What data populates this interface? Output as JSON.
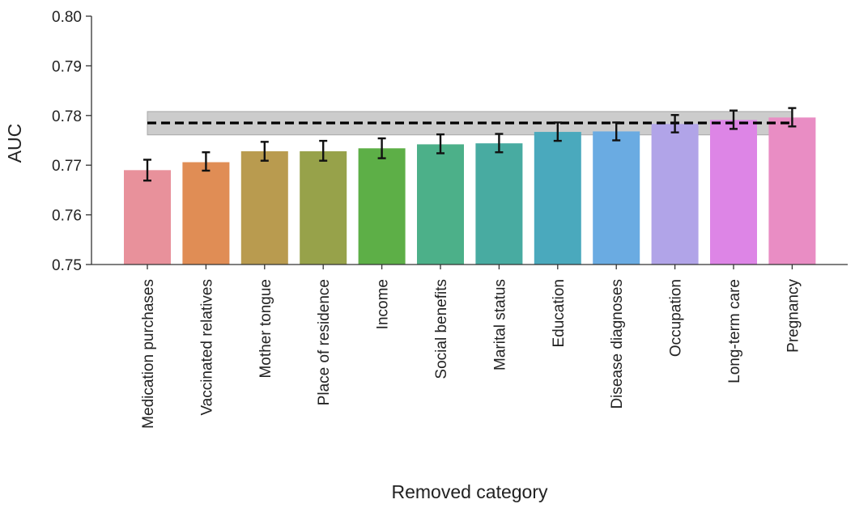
{
  "chart_data": {
    "type": "bar",
    "title": "",
    "xlabel": "Removed category",
    "ylabel": "AUC",
    "ylim": [
      0.75,
      0.8
    ],
    "yticks": [
      0.75,
      0.76,
      0.77,
      0.78,
      0.79,
      0.8
    ],
    "ytick_labels": [
      "0.75",
      "0.76",
      "0.77",
      "0.78",
      "0.79",
      "0.80"
    ],
    "grid": false,
    "categories": [
      "Medication purchases",
      "Vaccinated relatives",
      "Mother tongue",
      "Place of residence",
      "Income",
      "Social benefits",
      "Marital status",
      "Education",
      "Disease diagnoses",
      "Occupation",
      "Long-term care",
      "Pregnancy"
    ],
    "values": [
      0.769,
      0.7706,
      0.7728,
      0.7728,
      0.7734,
      0.7742,
      0.7744,
      0.7767,
      0.7768,
      0.7783,
      0.7791,
      0.7796
    ],
    "error_low": [
      0.7669,
      0.7689,
      0.7709,
      0.7709,
      0.7714,
      0.7724,
      0.7726,
      0.7749,
      0.775,
      0.7766,
      0.7773,
      0.7778
    ],
    "error_high": [
      0.7711,
      0.7726,
      0.7747,
      0.7749,
      0.7754,
      0.7762,
      0.7763,
      0.7786,
      0.7786,
      0.7801,
      0.781,
      0.7815
    ],
    "colors": [
      "#e8919b",
      "#e08d55",
      "#b99b4f",
      "#97a24a",
      "#5daf47",
      "#4cb089",
      "#48aba1",
      "#4aa9bd",
      "#6aabe2",
      "#b1a4e8",
      "#dd85e6",
      "#e98dc4"
    ],
    "reference": {
      "value": 0.7785,
      "band": [
        0.7761,
        0.7808
      ],
      "line_color": "#000000",
      "band_color": "#cccccc"
    }
  }
}
